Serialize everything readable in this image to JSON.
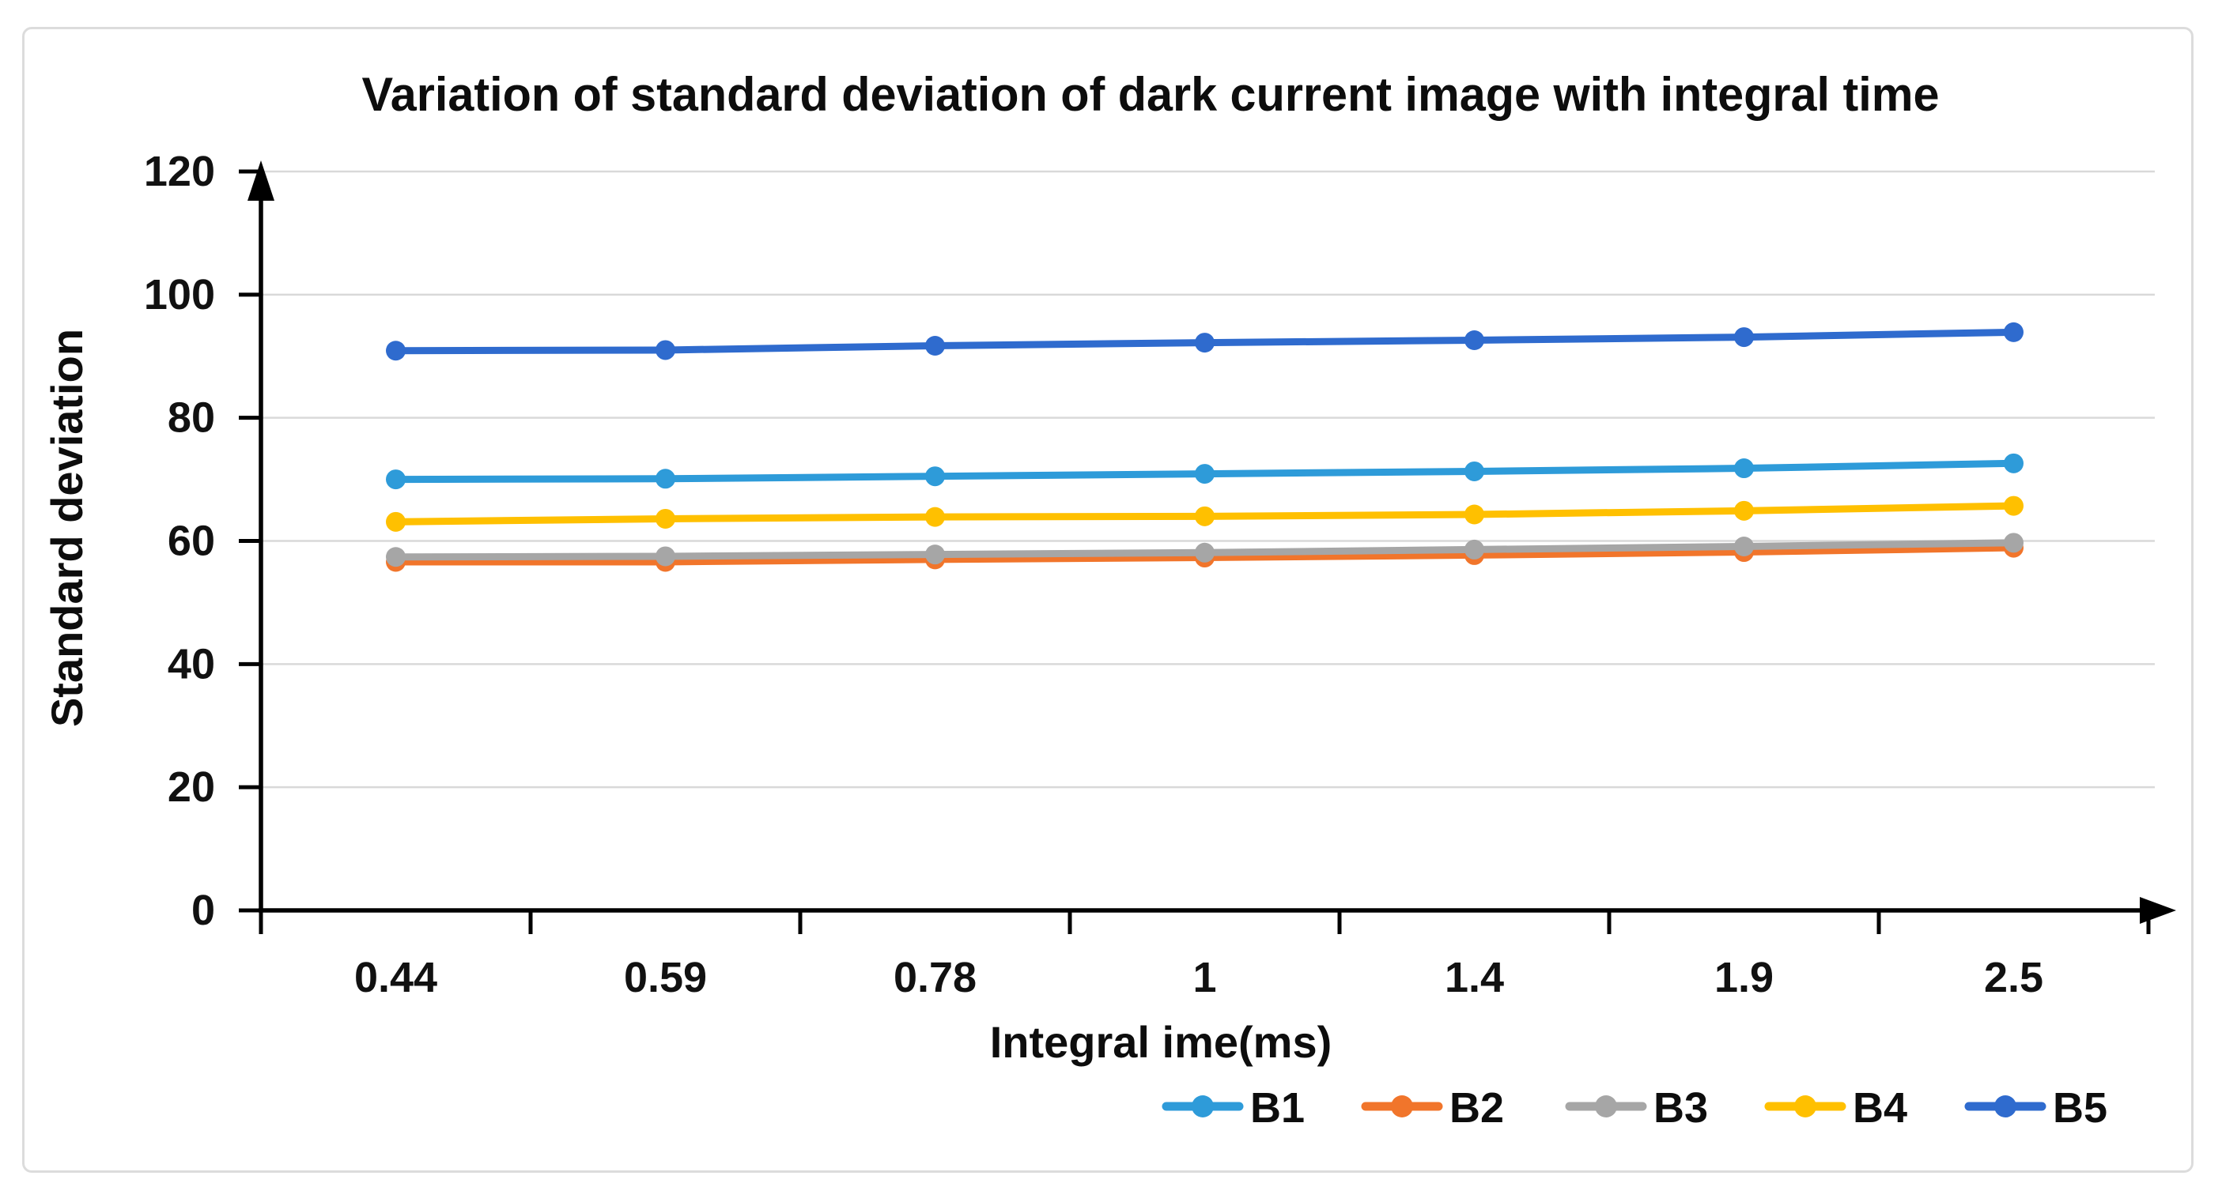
{
  "figure": {
    "background": "#ffffff",
    "border_color": "#dcdcdc"
  },
  "chart_data": {
    "type": "line",
    "title": "Variation of standard deviation of dark current image with integral time",
    "xlabel": "Integral ime(ms)",
    "ylabel": "Standard deviation",
    "categories": [
      "0.44",
      "0.59",
      "0.78",
      "1",
      "1.4",
      "1.9",
      "2.5"
    ],
    "series": [
      {
        "name": "B1",
        "color": "#2E9BD9",
        "values": [
          70.0,
          70.1,
          70.5,
          70.9,
          71.3,
          71.8,
          72.6
        ]
      },
      {
        "name": "B2",
        "color": "#F1752B",
        "values": [
          56.6,
          56.6,
          57.0,
          57.3,
          57.7,
          58.2,
          58.9
        ]
      },
      {
        "name": "B3",
        "color": "#A6A6A6",
        "values": [
          57.4,
          57.5,
          57.8,
          58.1,
          58.6,
          59.1,
          59.7
        ]
      },
      {
        "name": "B4",
        "color": "#FFC000",
        "values": [
          63.1,
          63.6,
          63.9,
          64.0,
          64.3,
          64.9,
          65.7
        ]
      },
      {
        "name": "B5",
        "color": "#2F6BCE",
        "values": [
          90.9,
          91.0,
          91.7,
          92.2,
          92.6,
          93.1,
          93.9
        ]
      }
    ],
    "legend": [
      "B1",
      "B2",
      "B3",
      "B4",
      "B5"
    ],
    "legend_position": "bottom-right",
    "ylim": [
      0,
      120
    ],
    "yticks": [
      0,
      20,
      40,
      60,
      80,
      100,
      120
    ],
    "grid": true,
    "gridline_color": "#D9D9D9",
    "axis_color": "#000000",
    "marker": "circle"
  }
}
